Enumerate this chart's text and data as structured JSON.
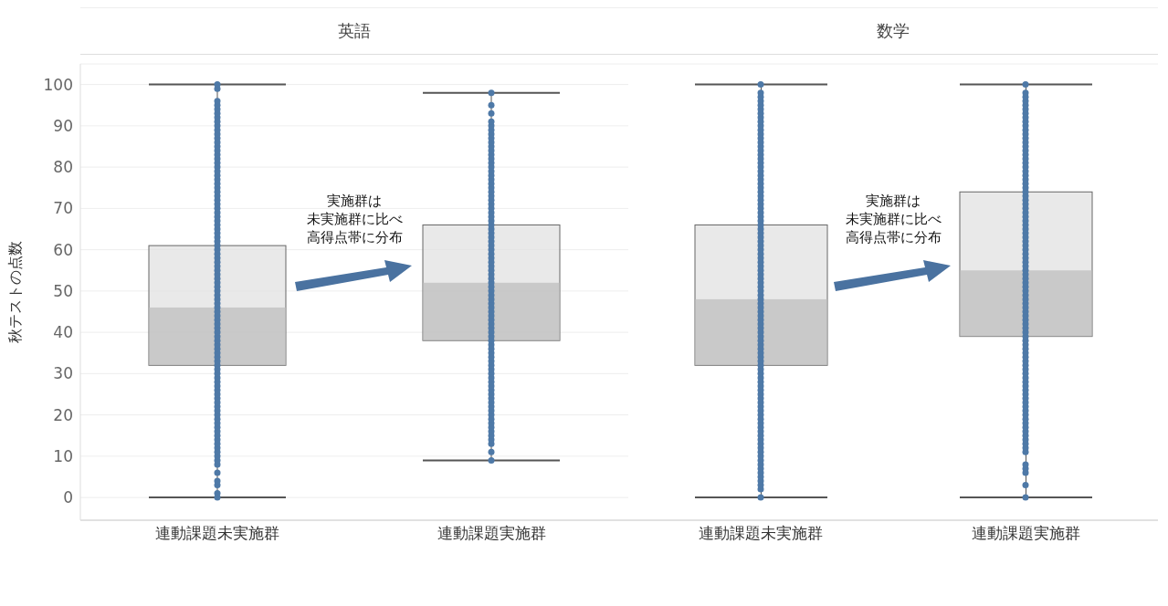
{
  "chart_data": [
    {
      "type": "box",
      "title": "英語",
      "ylabel": "秋テストの点数",
      "categories": [
        "連動課題未実施群",
        "連動課題実施群"
      ],
      "ylim": [
        -5.5,
        105
      ],
      "yticks": [
        0,
        10,
        20,
        30,
        40,
        50,
        60,
        70,
        80,
        90,
        100
      ],
      "grid": "y",
      "annotations": [
        "実施群は",
        "未実施群に比べ",
        "高得点帯に分布"
      ],
      "series": [
        {
          "boxes": [
            {
              "low": 0,
              "q1": 32,
              "median": 46,
              "q3": 61,
              "high": 100
            },
            {
              "low": 9,
              "q1": 38,
              "median": 52,
              "q3": 66,
              "high": 98
            }
          ]
        },
        {
          "type": "scatter",
          "color": "#4e79a7",
          "x": [
            "連動課題未実施群",
            "連動課題未実施群",
            "連動課題未実施群",
            "連動課題未実施群",
            "連動課題未実施群",
            "連動課題未実施群",
            "連動課題未実施群",
            "連動課題未実施群",
            "連動課題未実施群",
            "連動課題未実施群",
            "連動課題未実施群",
            "連動課題未実施群",
            "連動課題未実施群",
            "連動課題未実施群",
            "連動課題未実施群",
            "連動課題未実施群",
            "連動課題未実施群",
            "連動課題未実施群",
            "連動課題未実施群",
            "連動課題未実施群",
            "連動課題未実施群",
            "連動課題未実施群",
            "連動課題未実施群",
            "連動課題未実施群",
            "連動課題未実施群",
            "連動課題未実施群",
            "連動課題未実施群",
            "連動課題未実施群",
            "連動課題未実施群",
            "連動課題未実施群",
            "連動課題未実施群",
            "連動課題未実施群",
            "連動課題未実施群",
            "連動課題未実施群",
            "連動課題未実施群",
            "連動課題未実施群",
            "連動課題未実施群",
            "連動課題未実施群",
            "連動課題未実施群",
            "連動課題未実施群",
            "連動課題未実施群",
            "連動課題未実施群",
            "連動課題未実施群",
            "連動課題未実施群",
            "連動課題未実施群",
            "連動課題未実施群",
            "連動課題未実施群",
            "連動課題未実施群",
            "連動課題未実施群",
            "連動課題未実施群",
            "連動課題未実施群",
            "連動課題未実施群",
            "連動課題未実施群",
            "連動課題未実施群",
            "連動課題未実施群",
            "連動課題未実施群",
            "連動課題未実施群",
            "連動課題未実施群",
            "連動課題未実施群",
            "連動課題未実施群",
            "連動課題未実施群",
            "連動課題未実施群",
            "連動課題未実施群",
            "連動課題未実施群",
            "連動課題未実施群",
            "連動課題未実施群",
            "連動課題未実施群",
            "連動課題未実施群",
            "連動課題未実施群",
            "連動課題未実施群",
            "連動課題未実施群",
            "連動課題未実施群",
            "連動課題未実施群",
            "連動課題未実施群",
            "連動課題未実施群",
            "連動課題未実施群",
            "連動課題未実施群",
            "連動課題未実施群",
            "連動課題未実施群",
            "連動課題未実施群",
            "連動課題未実施群",
            "連動課題未実施群",
            "連動課題未実施群",
            "連動課題未実施群",
            "連動課題未実施群",
            "連動課題未実施群",
            "連動課題未実施群",
            "連動課題未実施群",
            "連動課題未実施群",
            "連動課題未実施群",
            "連動課題未実施群",
            "連動課題未実施群",
            "連動課題未実施群",
            "連動課題未実施群",
            "連動課題未実施群",
            "連動課題未実施群",
            "連動課題実施群",
            "連動課題実施群",
            "連動課題実施群",
            "連動課題実施群",
            "連動課題実施群",
            "連動課題実施群",
            "連動課題実施群",
            "連動課題実施群",
            "連動課題実施群",
            "連動課題実施群",
            "連動課題実施群",
            "連動課題実施群",
            "連動課題実施群",
            "連動課題実施群",
            "連動課題実施群",
            "連動課題実施群",
            "連動課題実施群",
            "連動課題実施群",
            "連動課題実施群",
            "連動課題実施群",
            "連動課題実施群",
            "連動課題実施群",
            "連動課題実施群",
            "連動課題実施群",
            "連動課題実施群",
            "連動課題実施群",
            "連動課題実施群",
            "連動課題実施群",
            "連動課題実施群",
            "連動課題実施群",
            "連動課題実施群",
            "連動課題実施群",
            "連動課題実施群",
            "連動課題実施群",
            "連動課題実施群",
            "連動課題実施群",
            "連動課題実施群",
            "連動課題実施群",
            "連動課題実施群",
            "連動課題実施群",
            "連動課題実施群",
            "連動課題実施群",
            "連動課題実施群",
            "連動課題実施群",
            "連動課題実施群",
            "連動課題実施群",
            "連動課題実施群",
            "連動課題実施群",
            "連動課題実施群",
            "連動課題実施群",
            "連動課題実施群",
            "連動課題実施群",
            "連動課題実施群",
            "連動課題実施群",
            "連動課題実施群",
            "連動課題実施群",
            "連動課題実施群",
            "連動課題実施群",
            "連動課題実施群",
            "連動課題実施群",
            "連動課題実施群",
            "連動課題実施群",
            "連動課題実施群",
            "連動課題実施群",
            "連動課題実施群",
            "連動課題実施群",
            "連動課題実施群",
            "連動課題実施群",
            "連動課題実施群",
            "連動課題実施群",
            "連動課題実施群",
            "連動課題実施群",
            "連動課題実施群",
            "連動課題実施群",
            "連動課題実施群",
            "連動課題実施群",
            "連動課題実施群",
            "連動課題実施群",
            "連動課題実施群",
            "連動課題実施群",
            "連動課題実施群",
            "連動課題実施群",
            "連動課題実施群",
            "連動課題実施群"
          ],
          "values": [
            0,
            1,
            3,
            4,
            6,
            8,
            9,
            10,
            11,
            12,
            13,
            14,
            15,
            16,
            17,
            18,
            19,
            20,
            21,
            22,
            23,
            24,
            25,
            26,
            27,
            28,
            29,
            30,
            31,
            32,
            33,
            34,
            35,
            36,
            37,
            38,
            39,
            40,
            41,
            42,
            43,
            44,
            45,
            46,
            47,
            48,
            49,
            50,
            51,
            52,
            53,
            54,
            55,
            56,
            57,
            58,
            59,
            60,
            61,
            62,
            63,
            64,
            65,
            66,
            67,
            68,
            69,
            70,
            71,
            72,
            73,
            74,
            75,
            76,
            77,
            78,
            79,
            80,
            81,
            82,
            83,
            84,
            85,
            86,
            87,
            88,
            89,
            90,
            91,
            92,
            93,
            94,
            95,
            96,
            99,
            100,
            9,
            11,
            13,
            14,
            15,
            16,
            17,
            18,
            19,
            20,
            21,
            22,
            23,
            24,
            25,
            26,
            27,
            28,
            29,
            30,
            31,
            32,
            33,
            34,
            35,
            36,
            37,
            38,
            39,
            40,
            41,
            42,
            43,
            44,
            45,
            46,
            47,
            48,
            49,
            50,
            51,
            52,
            53,
            54,
            55,
            56,
            57,
            58,
            59,
            60,
            61,
            62,
            63,
            64,
            65,
            66,
            67,
            68,
            69,
            70,
            71,
            72,
            73,
            74,
            75,
            76,
            77,
            78,
            79,
            80,
            81,
            82,
            83,
            84,
            85,
            86,
            87,
            88,
            89,
            90,
            91,
            93,
            95,
            98
          ]
        }
      ]
    },
    {
      "type": "box",
      "title": "数学",
      "categories": [
        "連動課題未実施群",
        "連動課題実施群"
      ],
      "ylim": [
        -5.5,
        105
      ],
      "yticks": [
        0,
        10,
        20,
        30,
        40,
        50,
        60,
        70,
        80,
        90,
        100
      ],
      "grid": "y",
      "tick_labels": "x",
      "annotations": [
        "実施群は",
        "未実施群に比べ",
        "高得点帯に分布"
      ],
      "series": [
        {
          "boxes": [
            {
              "low": 0,
              "q1": 32,
              "median": 48,
              "q3": 66,
              "high": 100
            },
            {
              "low": 0,
              "q1": 39,
              "median": 55,
              "q3": 74,
              "high": 100
            }
          ]
        },
        {
          "type": "scatter",
          "color": "#4e79a7",
          "x": [
            "連動課題未実施群",
            "連動課題未実施群",
            "連動課題未実施群",
            "連動課題未実施群",
            "連動課題未実施群",
            "連動課題未実施群",
            "連動課題未実施群",
            "連動課題未実施群",
            "連動課題未実施群",
            "連動課題未実施群",
            "連動課題未実施群",
            "連動課題未実施群",
            "連動課題未実施群",
            "連動課題未実施群",
            "連動課題未実施群",
            "連動課題未実施群",
            "連動課題未実施群",
            "連動課題未実施群",
            "連動課題未実施群",
            "連動課題未実施群",
            "連動課題未実施群",
            "連動課題未実施群",
            "連動課題未実施群",
            "連動課題未実施群",
            "連動課題未実施群",
            "連動課題未実施群",
            "連動課題未実施群",
            "連動課題未実施群",
            "連動課題未実施群",
            "連動課題未実施群",
            "連動課題未実施群",
            "連動課題未実施群",
            "連動課題未実施群",
            "連動課題未実施群",
            "連動課題未実施群",
            "連動課題未実施群",
            "連動課題未実施群",
            "連動課題未実施群",
            "連動課題未実施群",
            "連動課題未実施群",
            "連動課題未実施群",
            "連動課題未実施群",
            "連動課題未実施群",
            "連動課題未実施群",
            "連動課題未実施群",
            "連動課題未実施群",
            "連動課題未実施群",
            "連動課題未実施群",
            "連動課題未実施群",
            "連動課題未実施群",
            "連動課題未実施群",
            "連動課題未実施群",
            "連動課題未実施群",
            "連動課題未実施群",
            "連動課題未実施群",
            "連動課題未実施群",
            "連動課題未実施群",
            "連動課題未実施群",
            "連動課題未実施群",
            "連動課題未実施群",
            "連動課題未実施群",
            "連動課題未実施群",
            "連動課題未実施群",
            "連動課題未実施群",
            "連動課題未実施群",
            "連動課題未実施群",
            "連動課題未実施群",
            "連動課題未実施群",
            "連動課題未実施群",
            "連動課題未実施群",
            "連動課題未実施群",
            "連動課題未実施群",
            "連動課題未実施群",
            "連動課題未実施群",
            "連動課題未実施群",
            "連動課題未実施群",
            "連動課題未実施群",
            "連動課題未実施群",
            "連動課題未実施群",
            "連動課題未実施群",
            "連動課題未実施群",
            "連動課題未実施群",
            "連動課題未実施群",
            "連動課題未実施群",
            "連動課題未実施群",
            "連動課題未実施群",
            "連動課題未実施群",
            "連動課題未実施群",
            "連動課題未実施群",
            "連動課題未実施群",
            "連動課題未実施群",
            "連動課題未実施群",
            "連動課題未実施群",
            "連動課題未実施群",
            "連動課題未実施群",
            "連動課題未実施群",
            "連動課題未実施群",
            "連動課題未実施群",
            "連動課題未実施群",
            "連動課題実施群",
            "連動課題実施群",
            "連動課題実施群",
            "連動課題実施群",
            "連動課題実施群",
            "連動課題実施群",
            "連動課題実施群",
            "連動課題実施群",
            "連動課題実施群",
            "連動課題実施群",
            "連動課題実施群",
            "連動課題実施群",
            "連動課題実施群",
            "連動課題実施群",
            "連動課題実施群",
            "連動課題実施群",
            "連動課題実施群",
            "連動課題実施群",
            "連動課題実施群",
            "連動課題実施群",
            "連動課題実施群",
            "連動課題実施群",
            "連動課題実施群",
            "連動課題実施群",
            "連動課題実施群",
            "連動課題実施群",
            "連動課題実施群",
            "連動課題実施群",
            "連動課題実施群",
            "連動課題実施群",
            "連動課題実施群",
            "連動課題実施群",
            "連動課題実施群",
            "連動課題実施群",
            "連動課題実施群",
            "連動課題実施群",
            "連動課題実施群",
            "連動課題実施群",
            "連動課題実施群",
            "連動課題実施群",
            "連動課題実施群",
            "連動課題実施群",
            "連動課題実施群",
            "連動課題実施群",
            "連動課題実施群",
            "連動課題実施群",
            "連動課題実施群",
            "連動課題実施群",
            "連動課題実施群",
            "連動課題実施群",
            "連動課題実施群",
            "連動課題実施群",
            "連動課題実施群",
            "連動課題実施群",
            "連動課題実施群",
            "連動課題実施群",
            "連動課題実施群",
            "連動課題実施群",
            "連動課題実施群",
            "連動課題実施群",
            "連動課題実施群",
            "連動課題実施群",
            "連動課題実施群",
            "連動課題実施群",
            "連動課題実施群",
            "連動課題実施群",
            "連動課題実施群",
            "連動課題実施群",
            "連動課題実施群",
            "連動課題実施群",
            "連動課題実施群",
            "連動課題実施群",
            "連動課題実施群",
            "連動課題実施群",
            "連動課題実施群",
            "連動課題実施群",
            "連動課題実施群",
            "連動課題実施群",
            "連動課題実施群",
            "連動課題実施群",
            "連動課題実施群",
            "連動課題実施群",
            "連動課題実施群",
            "連動課題実施群",
            "連動課題実施群",
            "連動課題実施群",
            "連動課題実施群",
            "連動課題実施群",
            "連動課題実施群",
            "連動課題実施群",
            "連動課題実施群",
            "連動課題実施群",
            "連動課題実施群",
            "連動課題実施群"
          ],
          "values": [
            0,
            2,
            3,
            4,
            5,
            6,
            7,
            8,
            9,
            10,
            11,
            12,
            13,
            14,
            15,
            16,
            17,
            18,
            19,
            20,
            21,
            22,
            23,
            24,
            25,
            26,
            27,
            28,
            29,
            30,
            31,
            32,
            33,
            34,
            35,
            36,
            37,
            38,
            39,
            40,
            41,
            42,
            43,
            44,
            45,
            46,
            47,
            48,
            49,
            50,
            51,
            52,
            53,
            54,
            55,
            56,
            57,
            58,
            59,
            60,
            61,
            62,
            63,
            64,
            65,
            66,
            67,
            68,
            69,
            70,
            71,
            72,
            73,
            74,
            75,
            76,
            77,
            78,
            79,
            80,
            81,
            82,
            83,
            84,
            85,
            86,
            87,
            88,
            89,
            90,
            91,
            92,
            93,
            94,
            95,
            96,
            97,
            98,
            100,
            0,
            3,
            6,
            7,
            8,
            11,
            12,
            13,
            14,
            15,
            16,
            17,
            18,
            19,
            20,
            21,
            22,
            23,
            24,
            25,
            26,
            27,
            28,
            29,
            30,
            31,
            32,
            33,
            34,
            35,
            36,
            37,
            38,
            39,
            40,
            41,
            42,
            43,
            44,
            45,
            46,
            47,
            48,
            49,
            50,
            51,
            52,
            53,
            54,
            55,
            56,
            57,
            58,
            59,
            60,
            61,
            62,
            63,
            64,
            65,
            66,
            67,
            68,
            69,
            70,
            71,
            72,
            73,
            74,
            75,
            76,
            77,
            78,
            79,
            80,
            81,
            82,
            83,
            84,
            85,
            86,
            87,
            88,
            89,
            90,
            91,
            92,
            93,
            94,
            95,
            96,
            97,
            98,
            100
          ]
        }
      ]
    }
  ]
}
